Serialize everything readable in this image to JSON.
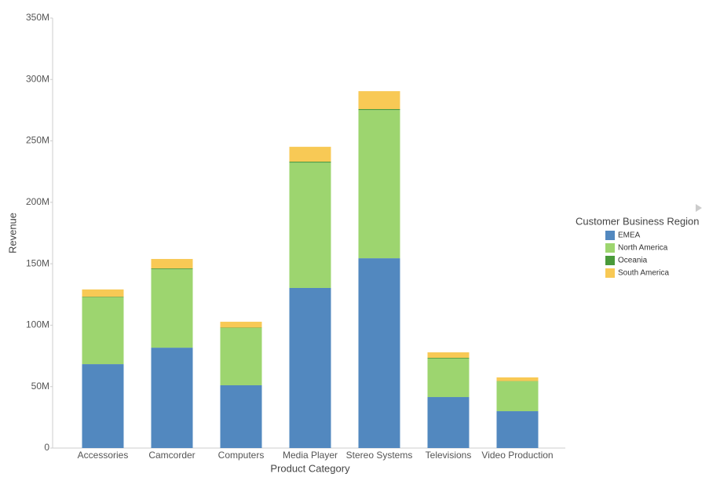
{
  "chart_data": {
    "type": "stacked_bar",
    "x_label": "Product Category",
    "y_label": "Revenue",
    "legend_title": "Customer Business Region",
    "categories": [
      "Accessories",
      "Camcorder",
      "Computers",
      "Media Player",
      "Stereo Systems",
      "Televisions",
      "Video Production"
    ],
    "series": [
      {
        "name": "EMEA",
        "color": "#5288bf",
        "values": [
          68300000,
          81700000,
          51100000,
          130300000,
          154500000,
          41500000,
          30000000
        ]
      },
      {
        "name": "North America",
        "color": "#9dd56f",
        "values": [
          54300000,
          63800000,
          46600000,
          102000000,
          120600000,
          31300000,
          24300000
        ]
      },
      {
        "name": "Oceania",
        "color": "#4a9a3a",
        "values": [
          500000,
          700000,
          300000,
          800000,
          800000,
          600000,
          200000
        ]
      },
      {
        "name": "South America",
        "color": "#f8c955",
        "values": [
          6000000,
          7700000,
          4800000,
          12100000,
          14600000,
          4500000,
          3000000
        ]
      }
    ],
    "ylim": [
      0,
      350000000
    ],
    "yticks": [
      0,
      {
        "value": 50000000,
        "label": "50M"
      },
      {
        "value": 100000000,
        "label": "100M"
      },
      {
        "value": 150000000,
        "label": "150M"
      },
      {
        "value": 200000000,
        "label": "200M"
      },
      {
        "value": 250000000,
        "label": "250M"
      },
      {
        "value": 300000000,
        "label": "300M"
      },
      {
        "value": 350000000,
        "label": "350M"
      }
    ],
    "grid": false
  }
}
